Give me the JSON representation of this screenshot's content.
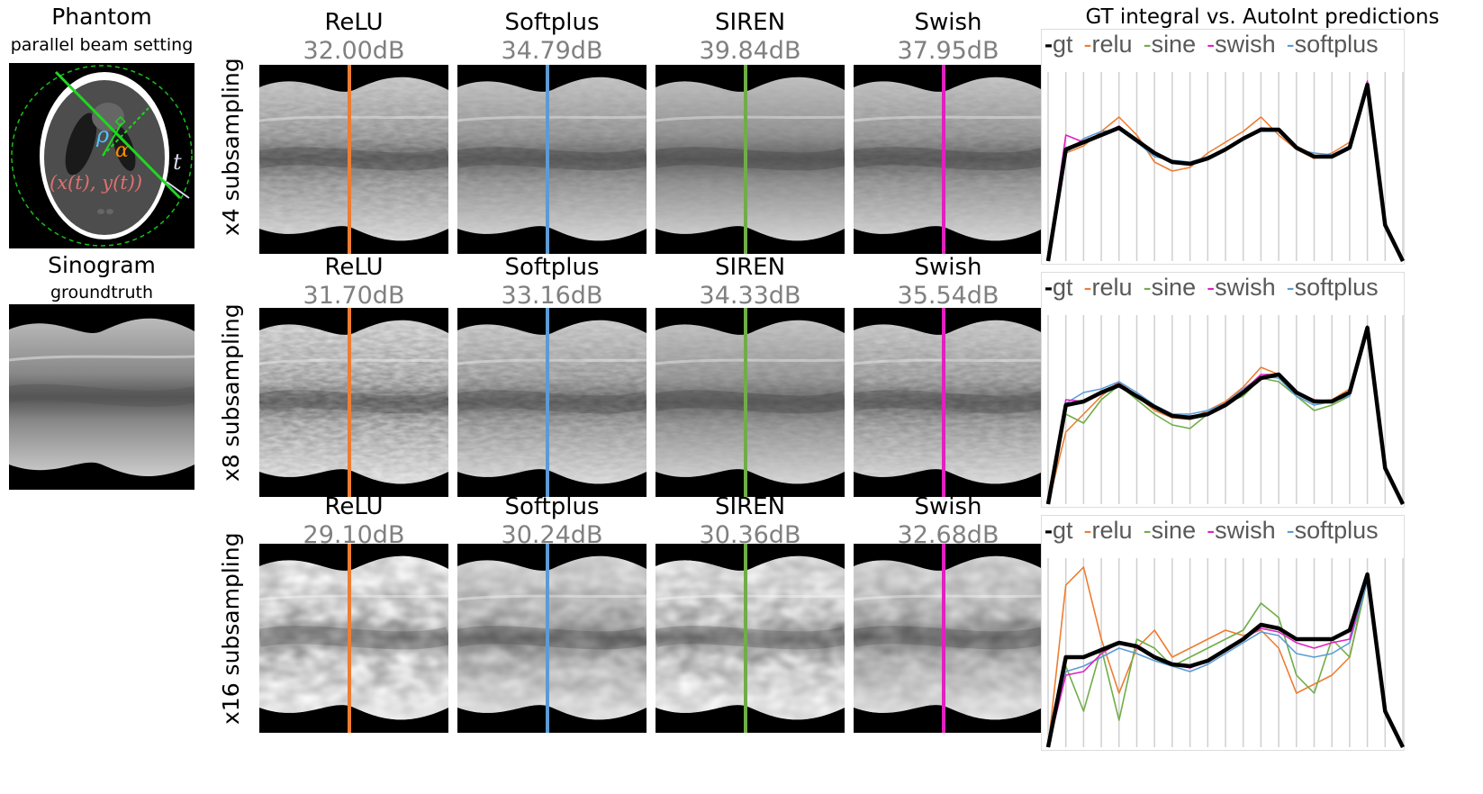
{
  "left": {
    "phantom_title": "Phantom",
    "phantom_subtitle": "parallel beam setting",
    "sinogram_title": "Sinogram",
    "sinogram_subtitle": "groundtruth",
    "annotations": {
      "rho": "ρ",
      "alpha": "α",
      "t": "t",
      "xy": "(x(t), y(t))"
    }
  },
  "rows": [
    {
      "label": "x4 subsampling",
      "panels": [
        {
          "method": "ReLU",
          "psnr": "32.00dB",
          "line_color": "#ed7d31"
        },
        {
          "method": "Softplus",
          "psnr": "34.79dB",
          "line_color": "#5b9bd5"
        },
        {
          "method": "SIREN",
          "psnr": "39.84dB",
          "line_color": "#70ad47"
        },
        {
          "method": "Swish",
          "psnr": "37.95dB",
          "line_color": "#e020c0"
        }
      ]
    },
    {
      "label": "x8 subsampling",
      "panels": [
        {
          "method": "ReLU",
          "psnr": "31.70dB",
          "line_color": "#ed7d31"
        },
        {
          "method": "Softplus",
          "psnr": "33.16dB",
          "line_color": "#5b9bd5"
        },
        {
          "method": "SIREN",
          "psnr": "34.33dB",
          "line_color": "#70ad47"
        },
        {
          "method": "Swish",
          "psnr": "35.54dB",
          "line_color": "#e020c0"
        }
      ]
    },
    {
      "label": "x16 subsampling",
      "panels": [
        {
          "method": "ReLU",
          "psnr": "29.10dB",
          "line_color": "#ed7d31"
        },
        {
          "method": "Softplus",
          "psnr": "30.24dB",
          "line_color": "#5b9bd5"
        },
        {
          "method": "SIREN",
          "psnr": "30.36dB",
          "line_color": "#70ad47"
        },
        {
          "method": "Swish",
          "psnr": "32.68dB",
          "line_color": "#e020c0"
        }
      ]
    }
  ],
  "plots": {
    "title": "GT integral vs. AutoInt predictions",
    "legend": [
      {
        "name": "gt",
        "color": "#000000"
      },
      {
        "name": "relu",
        "color": "#ed7d31"
      },
      {
        "name": "sine",
        "color": "#70ad47"
      },
      {
        "name": "swish",
        "color": "#e020c0"
      },
      {
        "name": "softplus",
        "color": "#5b9bd5"
      }
    ]
  },
  "chart_data": [
    {
      "type": "line",
      "title": "GT integral vs. AutoInt predictions",
      "xlabel": "",
      "ylabel": "",
      "x": [
        0,
        0.05,
        0.1,
        0.15,
        0.2,
        0.25,
        0.3,
        0.35,
        0.4,
        0.45,
        0.5,
        0.55,
        0.6,
        0.65,
        0.7,
        0.75,
        0.8,
        0.85,
        0.9,
        0.95,
        1.0
      ],
      "series": [
        {
          "name": "gt",
          "values": [
            0,
            0.62,
            0.66,
            0.7,
            0.74,
            0.67,
            0.6,
            0.55,
            0.54,
            0.57,
            0.62,
            0.68,
            0.73,
            0.73,
            0.63,
            0.58,
            0.58,
            0.63,
            0.98,
            0.2,
            0
          ]
        },
        {
          "name": "relu",
          "values": [
            0,
            0.6,
            0.64,
            0.72,
            0.8,
            0.7,
            0.55,
            0.5,
            0.52,
            0.6,
            0.66,
            0.72,
            0.8,
            0.7,
            0.62,
            0.57,
            0.6,
            0.66,
            0.95,
            0.2,
            0
          ]
        },
        {
          "name": "sine",
          "values": [
            0,
            0.62,
            0.66,
            0.7,
            0.74,
            0.67,
            0.6,
            0.55,
            0.54,
            0.57,
            0.62,
            0.68,
            0.73,
            0.73,
            0.63,
            0.58,
            0.58,
            0.63,
            0.98,
            0.2,
            0
          ]
        },
        {
          "name": "swish",
          "values": [
            0,
            0.7,
            0.66,
            0.7,
            0.75,
            0.67,
            0.6,
            0.55,
            0.54,
            0.57,
            0.62,
            0.68,
            0.74,
            0.73,
            0.63,
            0.58,
            0.58,
            0.63,
            1.0,
            0.2,
            0
          ]
        },
        {
          "name": "softplus",
          "values": [
            0,
            0.6,
            0.68,
            0.72,
            0.73,
            0.66,
            0.58,
            0.56,
            0.55,
            0.58,
            0.62,
            0.68,
            0.72,
            0.72,
            0.62,
            0.6,
            0.59,
            0.64,
            0.96,
            0.2,
            0
          ]
        }
      ]
    },
    {
      "type": "line",
      "xlabel": "",
      "ylabel": "",
      "x": [
        0,
        0.05,
        0.1,
        0.15,
        0.2,
        0.25,
        0.3,
        0.35,
        0.4,
        0.45,
        0.5,
        0.55,
        0.6,
        0.65,
        0.7,
        0.75,
        0.8,
        0.85,
        0.9,
        0.95,
        1.0
      ],
      "series": [
        {
          "name": "gt",
          "values": [
            0,
            0.55,
            0.57,
            0.62,
            0.66,
            0.6,
            0.54,
            0.49,
            0.48,
            0.5,
            0.55,
            0.62,
            0.7,
            0.72,
            0.62,
            0.57,
            0.57,
            0.62,
            0.98,
            0.2,
            0
          ]
        },
        {
          "name": "relu",
          "values": [
            0,
            0.4,
            0.5,
            0.6,
            0.68,
            0.6,
            0.52,
            0.48,
            0.47,
            0.52,
            0.57,
            0.65,
            0.76,
            0.72,
            0.62,
            0.57,
            0.58,
            0.64,
            0.95,
            0.2,
            0
          ]
        },
        {
          "name": "sine",
          "values": [
            0,
            0.5,
            0.45,
            0.58,
            0.66,
            0.58,
            0.5,
            0.44,
            0.42,
            0.5,
            0.56,
            0.6,
            0.7,
            0.68,
            0.6,
            0.52,
            0.55,
            0.6,
            0.96,
            0.2,
            0
          ]
        },
        {
          "name": "swish",
          "values": [
            0,
            0.58,
            0.57,
            0.62,
            0.67,
            0.6,
            0.54,
            0.49,
            0.49,
            0.5,
            0.56,
            0.63,
            0.72,
            0.72,
            0.62,
            0.58,
            0.57,
            0.62,
            0.99,
            0.2,
            0
          ]
        },
        {
          "name": "softplus",
          "values": [
            0,
            0.56,
            0.62,
            0.64,
            0.68,
            0.62,
            0.55,
            0.5,
            0.5,
            0.52,
            0.56,
            0.64,
            0.71,
            0.7,
            0.6,
            0.55,
            0.57,
            0.6,
            0.95,
            0.2,
            0
          ]
        }
      ]
    },
    {
      "type": "line",
      "xlabel": "",
      "ylabel": "",
      "x": [
        0,
        0.05,
        0.1,
        0.15,
        0.2,
        0.25,
        0.3,
        0.35,
        0.4,
        0.45,
        0.5,
        0.55,
        0.6,
        0.65,
        0.7,
        0.75,
        0.8,
        0.85,
        0.9,
        0.95,
        1.0
      ],
      "series": [
        {
          "name": "gt",
          "values": [
            0,
            0.5,
            0.5,
            0.54,
            0.58,
            0.56,
            0.5,
            0.46,
            0.45,
            0.48,
            0.54,
            0.6,
            0.68,
            0.66,
            0.6,
            0.6,
            0.6,
            0.65,
            0.96,
            0.2,
            0
          ]
        },
        {
          "name": "relu",
          "values": [
            0,
            0.9,
            1.0,
            0.6,
            0.3,
            0.55,
            0.65,
            0.5,
            0.55,
            0.6,
            0.65,
            0.62,
            0.65,
            0.55,
            0.3,
            0.35,
            0.4,
            0.5,
            0.95,
            0.2,
            0
          ]
        },
        {
          "name": "sine",
          "values": [
            0,
            0.45,
            0.2,
            0.55,
            0.15,
            0.6,
            0.55,
            0.45,
            0.5,
            0.55,
            0.6,
            0.65,
            0.8,
            0.72,
            0.4,
            0.3,
            0.6,
            0.5,
            0.93,
            0.2,
            0
          ]
        },
        {
          "name": "swish",
          "values": [
            0,
            0.4,
            0.42,
            0.52,
            0.58,
            0.55,
            0.5,
            0.46,
            0.44,
            0.48,
            0.54,
            0.6,
            0.66,
            0.64,
            0.58,
            0.55,
            0.58,
            0.6,
            0.95,
            0.2,
            0
          ]
        },
        {
          "name": "softplus",
          "values": [
            0,
            0.42,
            0.45,
            0.5,
            0.55,
            0.52,
            0.48,
            0.45,
            0.42,
            0.46,
            0.52,
            0.58,
            0.64,
            0.62,
            0.52,
            0.5,
            0.52,
            0.58,
            0.92,
            0.2,
            0
          ]
        }
      ]
    }
  ]
}
